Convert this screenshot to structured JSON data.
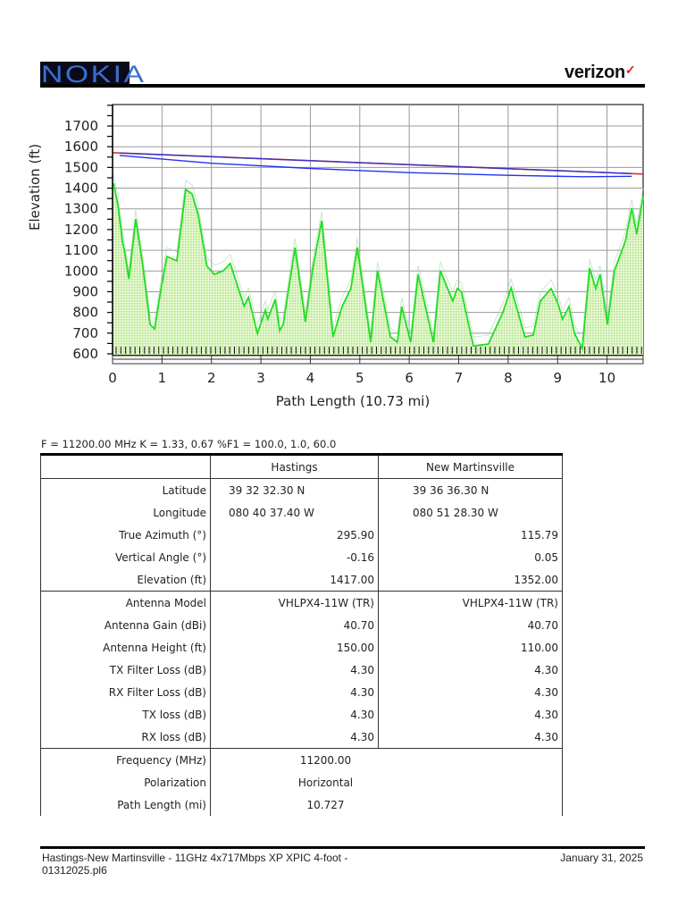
{
  "header": {
    "left_logo": "NOKIA",
    "right_logo": "verizon",
    "right_logo_mark": "✓"
  },
  "chart_data": {
    "type": "area",
    "title": "",
    "xlabel": "Path Length (10.73 mi)",
    "ylabel": "Elevation (ft)",
    "xlim": [
      0,
      10.73
    ],
    "ylim": [
      600,
      1800
    ],
    "x_ticks": [
      0,
      1,
      2,
      3,
      4,
      5,
      6,
      7,
      8,
      9,
      10
    ],
    "y_ticks": [
      600,
      700,
      800,
      900,
      1000,
      1100,
      1200,
      1300,
      1400,
      1500,
      1600,
      1700
    ],
    "grid": true,
    "series": [
      {
        "name": "terrain",
        "color": "#22dd22",
        "fill": "#cdeeb0",
        "points": [
          [
            0.02,
            1424
          ],
          [
            0.11,
            1316
          ],
          [
            0.2,
            1144
          ],
          [
            0.25,
            1087
          ],
          [
            0.33,
            962
          ],
          [
            0.47,
            1251
          ],
          [
            0.61,
            1027
          ],
          [
            0.76,
            742
          ],
          [
            0.85,
            721
          ],
          [
            0.98,
            915
          ],
          [
            1.1,
            1070
          ],
          [
            1.3,
            1049
          ],
          [
            1.48,
            1394
          ],
          [
            1.61,
            1372
          ],
          [
            1.73,
            1273
          ],
          [
            1.91,
            1023
          ],
          [
            2.06,
            984
          ],
          [
            2.24,
            1001
          ],
          [
            2.38,
            1036
          ],
          [
            2.66,
            830
          ],
          [
            2.75,
            873
          ],
          [
            2.93,
            699
          ],
          [
            3.09,
            812
          ],
          [
            3.14,
            768
          ],
          [
            3.29,
            863
          ],
          [
            3.38,
            712
          ],
          [
            3.45,
            742
          ],
          [
            3.69,
            1113
          ],
          [
            3.9,
            755
          ],
          [
            4.05,
            1014
          ],
          [
            4.23,
            1243
          ],
          [
            4.46,
            682
          ],
          [
            4.64,
            828
          ],
          [
            4.82,
            915
          ],
          [
            4.95,
            1113
          ],
          [
            5.22,
            656
          ],
          [
            5.36,
            1001
          ],
          [
            5.62,
            682
          ],
          [
            5.76,
            656
          ],
          [
            5.85,
            828
          ],
          [
            6.03,
            656
          ],
          [
            6.18,
            984
          ],
          [
            6.49,
            656
          ],
          [
            6.63,
            1001
          ],
          [
            6.88,
            855
          ],
          [
            6.97,
            915
          ],
          [
            7.06,
            898
          ],
          [
            7.24,
            699
          ],
          [
            7.3,
            639
          ],
          [
            7.6,
            647
          ],
          [
            7.89,
            798
          ],
          [
            8.06,
            919
          ],
          [
            8.34,
            682
          ],
          [
            8.51,
            691
          ],
          [
            8.65,
            855
          ],
          [
            8.87,
            915
          ],
          [
            9.01,
            842
          ],
          [
            9.1,
            768
          ],
          [
            9.23,
            828
          ],
          [
            9.34,
            699
          ],
          [
            9.5,
            626
          ],
          [
            9.65,
            1014
          ],
          [
            9.77,
            915
          ],
          [
            9.86,
            984
          ],
          [
            10.01,
            742
          ],
          [
            10.15,
            1001
          ],
          [
            10.37,
            1144
          ],
          [
            10.5,
            1303
          ],
          [
            10.6,
            1178
          ],
          [
            10.73,
            1359
          ]
        ]
      },
      {
        "name": "line-of-sight",
        "color": "#3333cc",
        "points": [
          [
            0,
            1571
          ],
          [
            10.73,
            1468
          ]
        ]
      },
      {
        "name": "fresnel-lower",
        "color": "#2233ee",
        "points": [
          [
            0.14,
            1558
          ],
          [
            2,
            1520
          ],
          [
            4,
            1495
          ],
          [
            6,
            1475
          ],
          [
            8,
            1462
          ],
          [
            9.5,
            1455
          ],
          [
            10.5,
            1457
          ]
        ]
      }
    ],
    "legend": null
  },
  "params_line": "F = 11200.00 MHz K = 1.33, 0.67 %F1 = 100.0, 1.0, 60.0",
  "table": {
    "header": [
      "",
      "Hastings",
      "New Martinsville"
    ],
    "site_rows": [
      {
        "label": "Latitude",
        "a": "39 32 32.30 N",
        "b": "39 36 36.30 N"
      },
      {
        "label": "Longitude",
        "a": "080 40 37.40 W",
        "b": "080 51 28.30 W"
      },
      {
        "label": "True Azimuth (°)",
        "a": "295.90",
        "b": "115.79"
      },
      {
        "label": "Vertical Angle (°)",
        "a": "-0.16",
        "b": "0.05"
      },
      {
        "label": "Elevation (ft)",
        "a": "1417.00",
        "b": "1352.00"
      }
    ],
    "antenna_rows": [
      {
        "label": "Antenna Model",
        "a": "VHLPX4-11W (TR)",
        "b": "VHLPX4-11W (TR)"
      },
      {
        "label": "Antenna Gain (dBi)",
        "a": "40.70",
        "b": "40.70"
      },
      {
        "label": "Antenna Height (ft)",
        "a": "150.00",
        "b": "110.00"
      },
      {
        "label": "TX Filter Loss (dB)",
        "a": "4.30",
        "b": "4.30"
      },
      {
        "label": "RX Filter Loss (dB)",
        "a": "4.30",
        "b": "4.30"
      },
      {
        "label": "TX loss (dB)",
        "a": "4.30",
        "b": "4.30"
      },
      {
        "label": "RX loss (dB)",
        "a": "4.30",
        "b": "4.30"
      }
    ],
    "path_rows": [
      {
        "label": "Frequency (MHz)",
        "value": "11200.00"
      },
      {
        "label": "Polarization",
        "value": "Horizontal"
      },
      {
        "label": "Path Length (mi)",
        "value": "10.727"
      }
    ]
  },
  "footer": {
    "left": "Hastings-New Martinsville - 11GHz 4x717Mbps XP XPIC 4-foot - 01312025.pl6",
    "right": "January 31, 2025"
  }
}
